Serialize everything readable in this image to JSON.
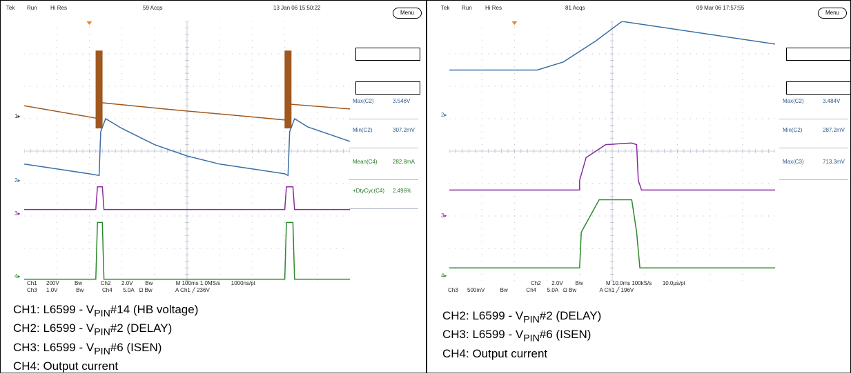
{
  "left": {
    "top": {
      "tek": "Tek",
      "run": "Run",
      "mode": "Hi Res",
      "acqs": "59 Acqs",
      "datetime": "13 Jan 06 15:50:22",
      "menu": "Menu"
    },
    "measurements": [
      {
        "label": "Max(C2)",
        "value": "3.546V"
      },
      {
        "label": "Min(C2)",
        "value": "307.2mV"
      },
      {
        "label": "Mean(C4)",
        "value": "282.8mA"
      },
      {
        "label": "+DtyCyc(C4)",
        "value": "2.496%"
      }
    ],
    "channel_markers": [
      "1",
      "2",
      "3",
      "4"
    ],
    "bottom": {
      "row1": [
        "Ch1",
        "200V",
        "Bw",
        "Ch2",
        "2.0V",
        "Bw",
        "M 100ms 1.0MS/s",
        "1000ns/pt"
      ],
      "row2": [
        "Ch3",
        "1.0V",
        "Bw",
        "Ch4",
        "5.0A",
        "Ω",
        "Bw",
        "A  Ch1  ╱  236V"
      ]
    },
    "caption": [
      {
        "pre": "CH1: L6599 - V",
        "sub": "PIN",
        "post": "#14 (HB voltage)"
      },
      {
        "pre": "CH2: L6599 - V",
        "sub": "PIN",
        "post": "#2 (DELAY)"
      },
      {
        "pre": "CH3: L6599 - V",
        "sub": "PIN",
        "post": "#6 (ISEN)"
      },
      {
        "pre": "CH4: Output current",
        "sub": "",
        "post": ""
      }
    ]
  },
  "right": {
    "top": {
      "tek": "Tek",
      "run": "Run",
      "mode": "Hi Res",
      "acqs": "81 Acqs",
      "datetime": "09 Mar 06 17:57:55",
      "menu": "Menu"
    },
    "measurements": [
      {
        "label": "Max(C2)",
        "value": "3.484V"
      },
      {
        "label": "Min(C2)",
        "value": "287.2mV"
      },
      {
        "label": "Max(C3)",
        "value": "713.3mV"
      }
    ],
    "channel_markers": [
      "2",
      "3",
      "4"
    ],
    "bottom": {
      "row1": [
        "Ch2",
        "2.0V",
        "Bw",
        "M 10.0ms 100kS/s",
        "10.0µs/pt"
      ],
      "row2": [
        "Ch3",
        "500mV",
        "Bw",
        "Ch4",
        "5.0A",
        "Ω",
        "Bw",
        "A  Ch1  ╱  196V"
      ]
    },
    "caption": [
      {
        "pre": "CH2: L6599 - V",
        "sub": "PIN",
        "post": "#2 (DELAY)"
      },
      {
        "pre": "CH3: L6599 - V",
        "sub": "PIN",
        "post": "#6 (ISEN)"
      },
      {
        "pre": "CH4: Output current",
        "sub": "",
        "post": ""
      }
    ]
  },
  "colors": {
    "ch1": "#a0581e",
    "ch2": "#3a6ea5",
    "ch3": "#8a2aa0",
    "ch4": "#2a8a2a",
    "grid": "#b8c0d0",
    "trigger": "#f08020"
  },
  "chart_data": [
    {
      "type": "line",
      "x_unit": "div",
      "xlim": [
        0,
        10
      ],
      "ylim": [
        0,
        8
      ],
      "series": [
        {
          "name": "CH1",
          "points": [
            [
              0,
              5.4
            ],
            [
              2.3,
              5.0
            ],
            [
              2.3,
              5.5
            ],
            [
              4.3,
              5.3
            ],
            [
              6.5,
              5.1
            ],
            [
              8.1,
              4.95
            ],
            [
              8.1,
              5.45
            ],
            [
              10,
              5.3
            ]
          ],
          "bursts": [
            2.3,
            8.1
          ]
        },
        {
          "name": "CH2",
          "points": [
            [
              0,
              3.6
            ],
            [
              1.0,
              3.45
            ],
            [
              2.0,
              3.3
            ],
            [
              2.3,
              3.25
            ],
            [
              2.35,
              4.6
            ],
            [
              2.5,
              5.0
            ],
            [
              3.0,
              4.7
            ],
            [
              4.0,
              4.2
            ],
            [
              5.0,
              3.85
            ],
            [
              6.0,
              3.6
            ],
            [
              7.0,
              3.45
            ],
            [
              8.0,
              3.3
            ],
            [
              8.1,
              3.25
            ],
            [
              8.15,
              4.6
            ],
            [
              8.3,
              5.0
            ],
            [
              8.7,
              4.75
            ],
            [
              10,
              4.3
            ]
          ]
        },
        {
          "name": "CH3",
          "points": [
            [
              0,
              2.2
            ],
            [
              2.2,
              2.2
            ],
            [
              2.25,
              2.9
            ],
            [
              2.4,
              2.9
            ],
            [
              2.45,
              2.2
            ],
            [
              8.0,
              2.2
            ],
            [
              8.05,
              2.9
            ],
            [
              8.25,
              2.9
            ],
            [
              8.3,
              2.2
            ],
            [
              10,
              2.2
            ]
          ]
        },
        {
          "name": "CH4",
          "points": [
            [
              0,
              0.05
            ],
            [
              2.2,
              0.05
            ],
            [
              2.25,
              1.8
            ],
            [
              2.4,
              1.8
            ],
            [
              2.45,
              0.05
            ],
            [
              8.0,
              0.05
            ],
            [
              8.05,
              1.8
            ],
            [
              8.25,
              1.8
            ],
            [
              8.3,
              0.05
            ],
            [
              10,
              0.05
            ]
          ]
        }
      ]
    },
    {
      "type": "line",
      "x_unit": "div",
      "xlim": [
        0,
        10
      ],
      "ylim": [
        0,
        8
      ],
      "series": [
        {
          "name": "CH2",
          "points": [
            [
              0,
              6.5
            ],
            [
              2.7,
              6.5
            ],
            [
              3.5,
              6.75
            ],
            [
              4.5,
              7.4
            ],
            [
              5.3,
              8.0
            ],
            [
              10,
              7.3
            ]
          ]
        },
        {
          "name": "CH3",
          "points": [
            [
              0,
              2.8
            ],
            [
              4.0,
              2.8
            ],
            [
              4.0,
              3.1
            ],
            [
              4.2,
              3.8
            ],
            [
              4.8,
              4.2
            ],
            [
              5.6,
              4.25
            ],
            [
              5.75,
              4.2
            ],
            [
              5.8,
              3.1
            ],
            [
              5.9,
              2.8
            ],
            [
              10,
              2.8
            ]
          ]
        },
        {
          "name": "CH4",
          "points": [
            [
              0,
              0.4
            ],
            [
              4.0,
              0.4
            ],
            [
              4.05,
              1.5
            ],
            [
              4.6,
              2.5
            ],
            [
              5.6,
              2.5
            ],
            [
              5.75,
              1.5
            ],
            [
              5.85,
              0.4
            ],
            [
              10,
              0.4
            ]
          ]
        }
      ]
    }
  ]
}
